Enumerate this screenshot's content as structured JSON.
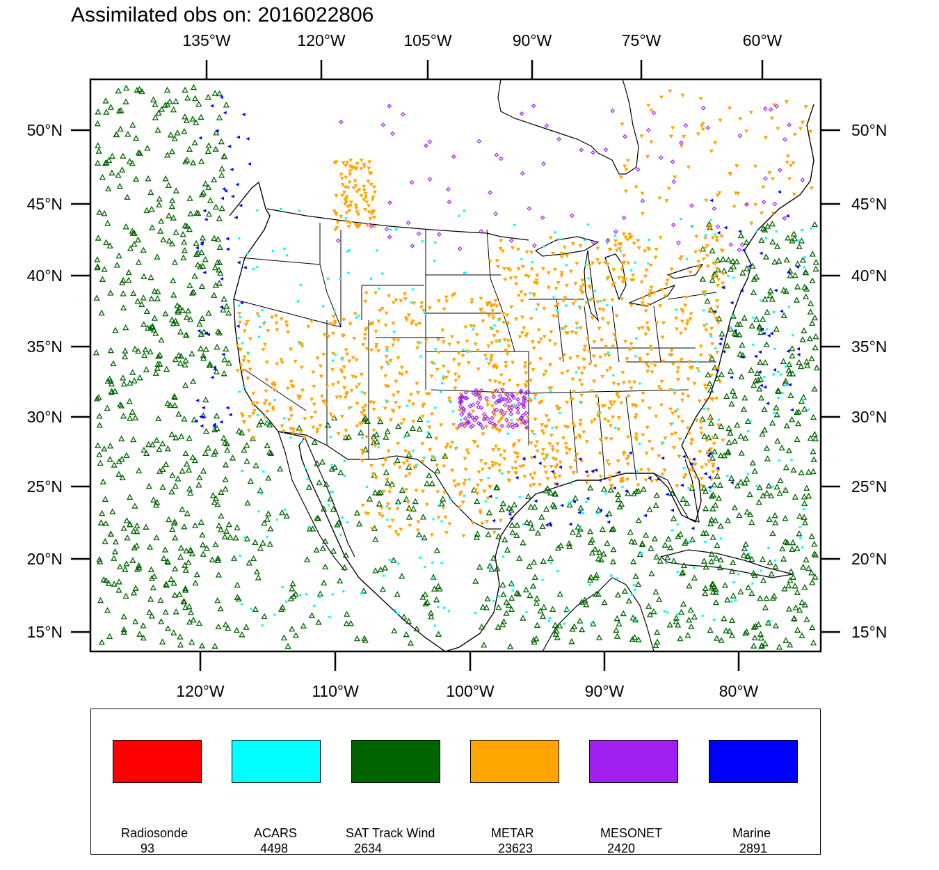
{
  "title": "Assimilated obs on: 2016022806",
  "map": {
    "top_lon_labels": [
      "135°W",
      "120°W",
      "105°W",
      "90°W",
      "75°W",
      "60°W"
    ],
    "bottom_lon_labels": [
      "120°W",
      "110°W",
      "100°W",
      "90°W",
      "80°W"
    ],
    "lat_labels": [
      "50°N",
      "45°N",
      "40°N",
      "35°N",
      "30°N",
      "25°N",
      "20°N",
      "15°N"
    ],
    "region": "Continental United States, southern Canada, Mexico, Gulf of Mexico, Caribbean"
  },
  "legend": {
    "items": [
      {
        "name": "Radiosonde",
        "count": "93",
        "color": "#ff0000",
        "marker": "none"
      },
      {
        "name": "ACARS",
        "count": "4498",
        "color": "#00ffff",
        "marker": "square-dot"
      },
      {
        "name": "SAT Track Wind",
        "count": "2634",
        "color": "#006400",
        "marker": "open-triangle"
      },
      {
        "name": "METAR",
        "count": "23623",
        "color": "#ffa500",
        "marker": "down-triangle"
      },
      {
        "name": "MESONET",
        "count": "2420",
        "color": "#a020f0",
        "marker": "open-diamond"
      },
      {
        "name": "Marine",
        "count": "2891",
        "color": "#0000ff",
        "marker": "left-triangle"
      }
    ]
  }
}
